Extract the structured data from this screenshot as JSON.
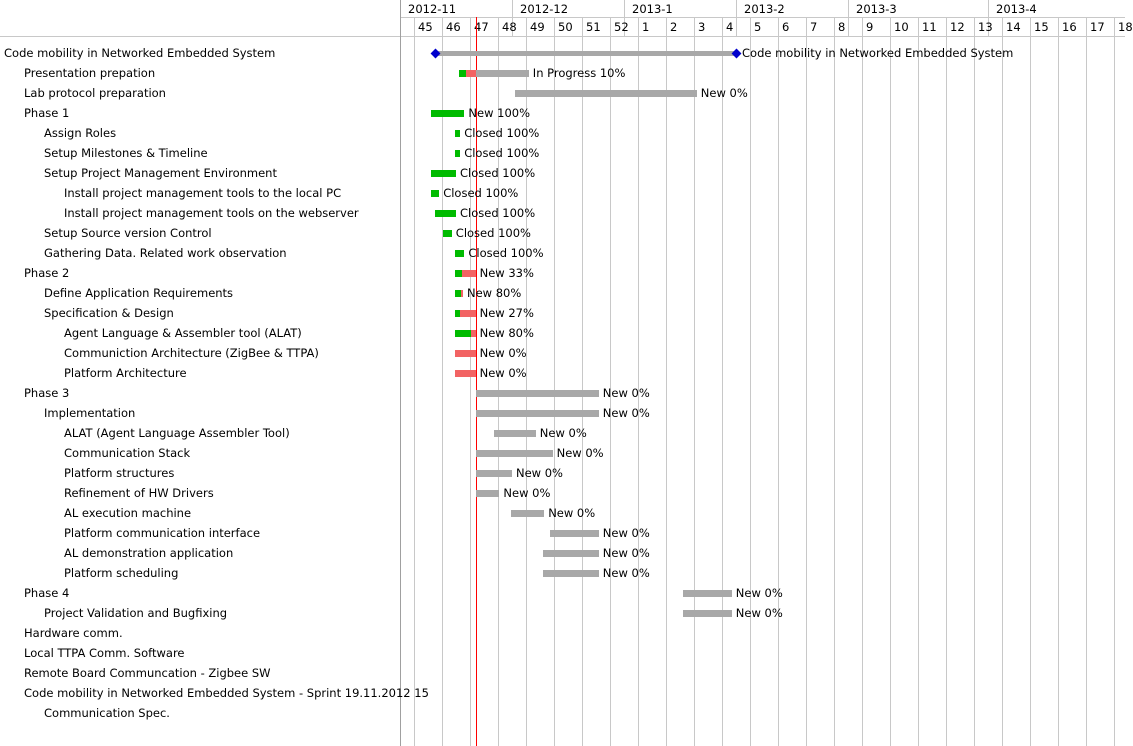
{
  "colors": {
    "done": "#00bb00",
    "late": "#f26363",
    "todo": "#a8a8a8",
    "milestone": "#0000cc",
    "today": "#ff0000",
    "grid": "#c8c8c8"
  },
  "timeline": {
    "months": [
      "2012-11",
      "2012-12",
      "2013-1",
      "2013-2",
      "2013-3",
      "2013-4"
    ],
    "weeks": [
      "45",
      "46",
      "47",
      "48",
      "49",
      "50",
      "51",
      "52",
      "1",
      "2",
      "3",
      "4",
      "5",
      "6",
      "7",
      "8",
      "9",
      "10",
      "11",
      "12",
      "13",
      "14",
      "15",
      "16",
      "17",
      "18"
    ],
    "today_week": 2.2
  },
  "tasks": [
    {
      "label": "Code mobility in Networked Embedded System",
      "level": 0,
      "type": "milestone",
      "start": 0.75,
      "end": 11.5,
      "status": "Code mobility in Networked Embedded System"
    },
    {
      "label": "Presentation prepation",
      "level": 1,
      "start": 1.6,
      "end": 4.1,
      "progress": 0.1,
      "late_until": 2.2,
      "status": "In Progress 10%"
    },
    {
      "label": "Lab protocol preparation",
      "level": 1,
      "start": 3.6,
      "end": 10.1,
      "progress": 0,
      "status": "New 0%"
    },
    {
      "label": "Phase 1",
      "level": 1,
      "start": 0.6,
      "end": 1.8,
      "progress": 1,
      "status": "New 100%"
    },
    {
      "label": "Assign Roles",
      "level": 2,
      "start": 1.45,
      "end": 1.65,
      "progress": 1,
      "status": "Closed 100%"
    },
    {
      "label": "Setup Milestones & Timeline",
      "level": 2,
      "start": 1.45,
      "end": 1.65,
      "progress": 1,
      "status": "Closed 100%"
    },
    {
      "label": "Setup Project Management Environment",
      "level": 2,
      "start": 0.6,
      "end": 1.5,
      "progress": 1,
      "status": "Closed 100%"
    },
    {
      "label": "Install project management tools to the local PC",
      "level": 3,
      "start": 0.6,
      "end": 0.9,
      "progress": 1,
      "status": "Closed 100%"
    },
    {
      "label": "Install project management tools on the webserver",
      "level": 3,
      "start": 0.75,
      "end": 1.5,
      "progress": 1,
      "status": "Closed 100%"
    },
    {
      "label": "Setup Source version Control",
      "level": 2,
      "start": 1.05,
      "end": 1.35,
      "progress": 1,
      "status": "Closed 100%"
    },
    {
      "label": "Gathering Data. Related work observation",
      "level": 2,
      "start": 1.45,
      "end": 1.8,
      "progress": 1,
      "status": "Closed 100%"
    },
    {
      "label": "Phase 2",
      "level": 1,
      "start": 1.45,
      "end": 2.2,
      "progress": 0.33,
      "late_until": 2.2,
      "status": "New 33%"
    },
    {
      "label": "Define Application Requirements",
      "level": 2,
      "start": 1.45,
      "end": 1.75,
      "progress": 0.8,
      "late_until": 1.75,
      "status": "New 80%"
    },
    {
      "label": "Specification & Design",
      "level": 2,
      "start": 1.45,
      "end": 2.2,
      "progress": 0.27,
      "late_until": 2.2,
      "status": "New 27%"
    },
    {
      "label": "Agent Language & Assembler tool (ALAT)",
      "level": 3,
      "start": 1.45,
      "end": 2.2,
      "progress": 0.8,
      "late_until": 2.2,
      "status": "New 80%"
    },
    {
      "label": "Communiction Architecture (ZigBee & TTPA)",
      "level": 3,
      "start": 1.45,
      "end": 2.2,
      "progress": 0,
      "late_until": 2.2,
      "status": "New 0%"
    },
    {
      "label": "Platform Architecture",
      "level": 3,
      "start": 1.45,
      "end": 2.2,
      "progress": 0,
      "late_until": 2.2,
      "status": "New 0%"
    },
    {
      "label": "Phase 3",
      "level": 1,
      "start": 2.2,
      "end": 6.6,
      "progress": 0,
      "status": "New 0%"
    },
    {
      "label": "Implementation",
      "level": 2,
      "start": 2.2,
      "end": 6.6,
      "progress": 0,
      "status": "New 0%"
    },
    {
      "label": "ALAT (Agent Language Assembler Tool)",
      "level": 3,
      "start": 2.85,
      "end": 4.35,
      "progress": 0,
      "status": "New 0%"
    },
    {
      "label": "Communication Stack",
      "level": 3,
      "start": 2.2,
      "end": 4.95,
      "progress": 0,
      "status": "New 0%"
    },
    {
      "label": "Platform structures",
      "level": 3,
      "start": 2.2,
      "end": 3.5,
      "progress": 0,
      "status": "New 0%"
    },
    {
      "label": "Refinement of HW Drivers",
      "level": 3,
      "start": 2.2,
      "end": 3.05,
      "progress": 0,
      "status": "New 0%"
    },
    {
      "label": "AL execution machine",
      "level": 3,
      "start": 3.45,
      "end": 4.65,
      "progress": 0,
      "status": "New 0%"
    },
    {
      "label": "Platform communication interface",
      "level": 3,
      "start": 4.85,
      "end": 6.6,
      "progress": 0,
      "status": "New 0%"
    },
    {
      "label": "AL demonstration application",
      "level": 3,
      "start": 4.6,
      "end": 6.6,
      "progress": 0,
      "status": "New 0%"
    },
    {
      "label": " Platform scheduling",
      "level": 3,
      "start": 4.6,
      "end": 6.6,
      "progress": 0,
      "status": "New 0%"
    },
    {
      "label": "Phase 4",
      "level": 1,
      "start": 9.6,
      "end": 11.35,
      "progress": 0,
      "status": "New 0%"
    },
    {
      "label": "Project Validation and Bugfixing",
      "level": 2,
      "start": 9.6,
      "end": 11.35,
      "progress": 0,
      "status": "New 0%"
    },
    {
      "label": "Hardware comm.",
      "level": 1
    },
    {
      "label": "Local TTPA Comm. Software",
      "level": 1
    },
    {
      "label": "Remote Board Communcation - Zigbee SW",
      "level": 1
    },
    {
      "label": "Code mobility in Networked Embedded System - Sprint 19.11.2012 15",
      "level": 1
    },
    {
      "label": "Communication Spec.",
      "level": 2
    }
  ]
}
